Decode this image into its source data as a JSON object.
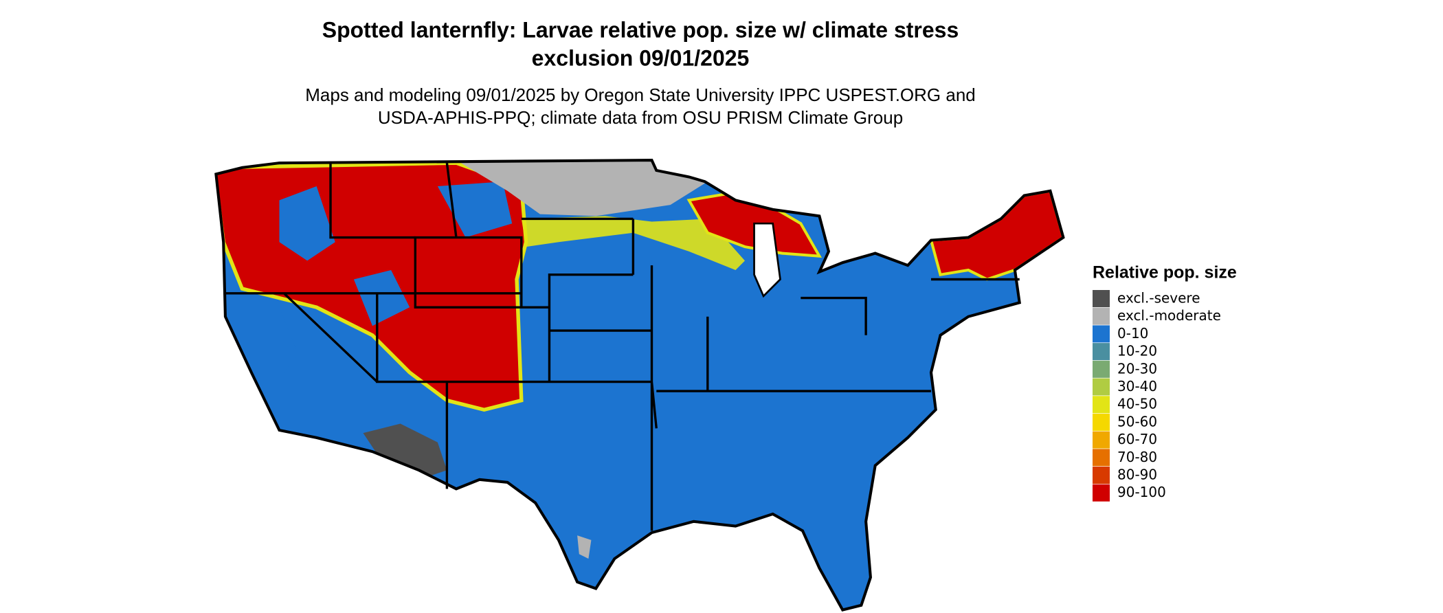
{
  "title": [
    "Spotted lanternfly: Larvae relative pop. size w/ climate stress",
    "exclusion 09/01/2025"
  ],
  "subtitle": [
    "Maps and modeling 09/01/2025 by Oregon State University IPPC USPEST.ORG and",
    "USDA-APHIS-PPQ; climate data from OSU PRISM Climate Group"
  ],
  "legend": {
    "title": "Relative pop. size",
    "items": [
      {
        "label": "excl.-severe",
        "color": "#505050"
      },
      {
        "label": "excl.-moderate",
        "color": "#b3b3b3"
      },
      {
        "label": "0-10",
        "color": "#1c74d0"
      },
      {
        "label": "10-20",
        "color": "#4a8fa0"
      },
      {
        "label": "20-30",
        "color": "#7aaa72"
      },
      {
        "label": "30-40",
        "color": "#b0cc42"
      },
      {
        "label": "40-50",
        "color": "#e2e416"
      },
      {
        "label": "50-60",
        "color": "#f5d800"
      },
      {
        "label": "60-70",
        "color": "#f0a800"
      },
      {
        "label": "70-80",
        "color": "#e67000"
      },
      {
        "label": "80-90",
        "color": "#d83a00"
      },
      {
        "label": "90-100",
        "color": "#d00000"
      }
    ]
  }
}
